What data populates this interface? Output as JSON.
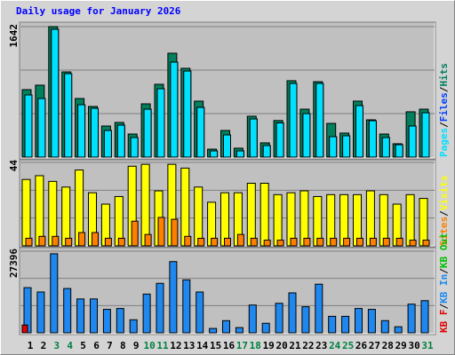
{
  "chart_data": [
    {
      "type": "bar",
      "title": "Daily usage for January 2026",
      "title_color": "#0000ff",
      "ylim": [
        0,
        1642
      ],
      "yticks": [
        1642
      ],
      "legend_separator": "/",
      "series": [
        {
          "name": "Hits",
          "color": "#00805c",
          "values": [
            849,
            905,
            1642,
            1072,
            737,
            637,
            391,
            436,
            290,
            670,
            916,
            1307,
            1117,
            704,
            100,
            335,
            112,
            514,
            179,
            460,
            961,
            603,
            949,
            424,
            302,
            704,
            469,
            290,
            168,
            570,
            603
          ]
        },
        {
          "name": "Files",
          "color": "#0040ff",
          "values": [
            782,
            737,
            1608,
            1050,
            659,
            614,
            335,
            402,
            246,
            603,
            860,
            1195,
            1083,
            625,
            78,
            279,
            78,
            480,
            145,
            430,
            927,
            547,
            927,
            257,
            268,
            648,
            458,
            246,
            156,
            391,
            558
          ]
        },
        {
          "name": "Pages",
          "color": "#00e0ff",
          "values": [
            782,
            737,
            1608,
            1050,
            659,
            614,
            335,
            402,
            246,
            603,
            860,
            1195,
            1083,
            625,
            78,
            279,
            78,
            480,
            145,
            430,
            927,
            547,
            927,
            257,
            268,
            648,
            458,
            246,
            156,
            391,
            558
          ]
        }
      ]
    },
    {
      "type": "bar",
      "ylim": [
        0,
        44
      ],
      "yticks": [
        44
      ],
      "legend_separator": "/",
      "series": [
        {
          "name": "Visits",
          "color": "#ffff00",
          "values": [
            35,
            37,
            34,
            31,
            40,
            28,
            22,
            26,
            42,
            43,
            29,
            43,
            41,
            31,
            23,
            28,
            28,
            33,
            33,
            27,
            28,
            29,
            26,
            27,
            27,
            27,
            29,
            27,
            22,
            27,
            25
          ]
        },
        {
          "name": "Sites",
          "color": "#ff8000",
          "values": [
            4,
            5,
            5,
            4,
            7,
            7,
            4,
            4,
            13,
            6,
            15,
            14,
            5,
            4,
            4,
            4,
            6,
            4,
            3,
            3,
            4,
            4,
            4,
            4,
            4,
            4,
            4,
            4,
            4,
            3,
            3
          ]
        }
      ]
    },
    {
      "type": "bar",
      "ylim": [
        0,
        27396
      ],
      "yticks": [
        27396
      ],
      "legend_separator": "/",
      "categories": [
        "1",
        "2",
        "3",
        "4",
        "5",
        "6",
        "7",
        "8",
        "9",
        "10",
        "11",
        "12",
        "13",
        "14",
        "15",
        "16",
        "17",
        "18",
        "19",
        "20",
        "21",
        "22",
        "23",
        "24",
        "25",
        "26",
        "27",
        "28",
        "29",
        "30",
        "31"
      ],
      "category_colors": [
        "#000000",
        "#000000",
        "#008040",
        "#008040",
        "#000000",
        "#000000",
        "#000000",
        "#000000",
        "#000000",
        "#008040",
        "#008040",
        "#000000",
        "#000000",
        "#000000",
        "#000000",
        "#000000",
        "#008040",
        "#008040",
        "#000000",
        "#000000",
        "#000000",
        "#000000",
        "#000000",
        "#008040",
        "#008040",
        "#000000",
        "#000000",
        "#000000",
        "#000000",
        "#000000",
        "#008040"
      ],
      "series": [
        {
          "name": "KB Out",
          "color": "#00c000",
          "values": [
            0,
            0,
            0,
            0,
            0,
            0,
            0,
            0,
            0,
            0,
            0,
            0,
            0,
            0,
            0,
            0,
            0,
            0,
            0,
            0,
            0,
            0,
            0,
            0,
            0,
            0,
            0,
            0,
            0,
            0,
            0
          ]
        },
        {
          "name": "KB In",
          "color": "#1e88f0",
          "values": [
            15155,
            13698,
            26522,
            14863,
            11366,
            11366,
            7868,
            8160,
            4371,
            13000,
            16610,
            23895,
            17775,
            13698,
            1457,
            4080,
            1748,
            9325,
            3205,
            9908,
            13404,
            8742,
            16318,
            5537,
            5537,
            8160,
            7868,
            4080,
            2040,
            9617,
            10782
          ]
        },
        {
          "name": "KB F",
          "color": "#e00000",
          "values": [
            2623,
            0,
            0,
            0,
            0,
            0,
            0,
            0,
            0,
            0,
            0,
            0,
            0,
            0,
            0,
            0,
            0,
            0,
            0,
            0,
            0,
            0,
            0,
            0,
            0,
            0,
            0,
            0,
            0,
            0,
            0
          ]
        }
      ]
    }
  ]
}
